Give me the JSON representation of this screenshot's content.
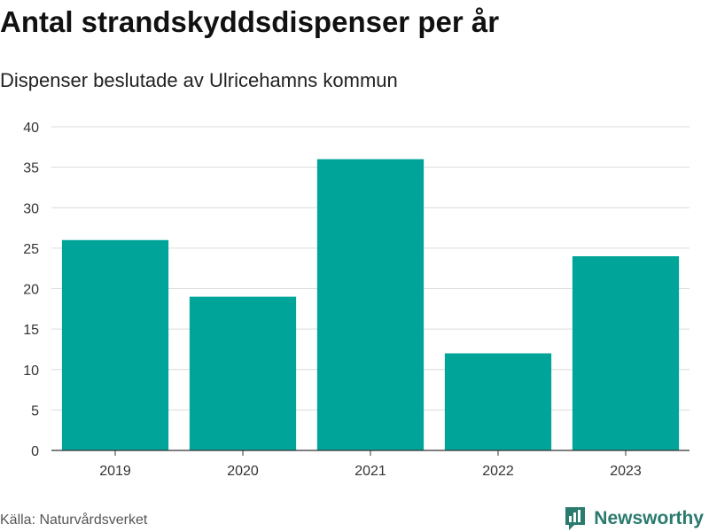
{
  "header": {
    "title": "Antal strandskyddsdispenser per år",
    "subtitle": "Dispenser beslutade av Ulricehamns kommun"
  },
  "footer": {
    "source": "Källa: Naturvårdsverket",
    "brand": "Newsworthy",
    "brand_icon": "bar-chart-logo-icon",
    "brand_color": "#2a7a6e"
  },
  "chart_data": {
    "type": "bar",
    "categories": [
      "2019",
      "2020",
      "2021",
      "2022",
      "2023"
    ],
    "values": [
      26,
      19,
      36,
      12,
      24
    ],
    "title": "Antal strandskyddsdispenser per år",
    "subtitle": "Dispenser beslutade av Ulricehamns kommun",
    "xlabel": "",
    "ylabel": "",
    "ylim": [
      0,
      40
    ],
    "yticks": [
      0,
      5,
      10,
      15,
      20,
      25,
      30,
      35,
      40
    ],
    "grid": true,
    "bar_color": "#00a499",
    "legend": "none"
  }
}
